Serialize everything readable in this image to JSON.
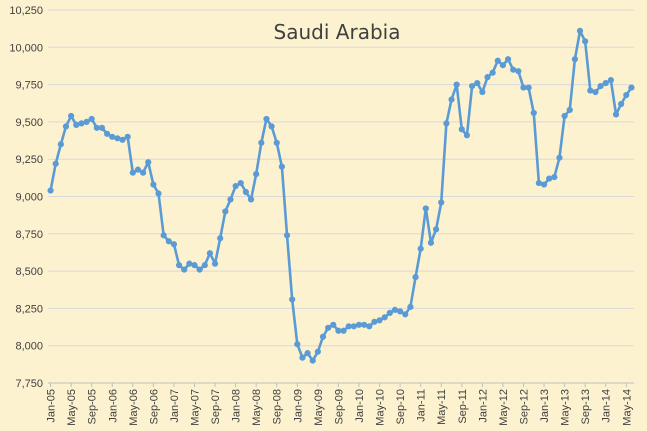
{
  "chart_data": {
    "type": "line",
    "title": "Saudi Arabia",
    "xlabel": "",
    "ylabel": "",
    "ylim": [
      7750,
      10250
    ],
    "yticks": [
      7750,
      8000,
      8250,
      8500,
      8750,
      9000,
      9250,
      9500,
      9750,
      10000,
      10250
    ],
    "ytick_labels": [
      "7,750",
      "8,000",
      "8,250",
      "8,500",
      "8,750",
      "9,000",
      "9,250",
      "9,500",
      "9,750",
      "10,000",
      "10,250"
    ],
    "xtick_labels": [
      "Jan-05",
      "May-05",
      "Sep-05",
      "Jan-06",
      "May-06",
      "Sep-06",
      "Jan-07",
      "May-07",
      "Sep-07",
      "Jan-08",
      "May-08",
      "Sep-08",
      "Jan-09",
      "May-09",
      "Sep-09",
      "Jan-10",
      "May-10",
      "Sep-10",
      "Jan-11",
      "May-11",
      "Sep-11",
      "Jan-12",
      "May-12",
      "Sep-12",
      "Jan-13",
      "May-13",
      "Sep-13",
      "Jan-14",
      "May-14"
    ],
    "grid": true,
    "line_color": "#5b9bd5",
    "grid_color": "#d9d9d9",
    "series": [
      {
        "name": "",
        "x_start": "Jan-05",
        "interval": "monthly",
        "values": [
          9040,
          9220,
          9350,
          9470,
          9540,
          9480,
          9490,
          9500,
          9520,
          9460,
          9460,
          9420,
          9400,
          9390,
          9380,
          9400,
          9160,
          9180,
          9160,
          9230,
          9080,
          9020,
          8740,
          8700,
          8680,
          8540,
          8510,
          8550,
          8540,
          8510,
          8540,
          8620,
          8550,
          8720,
          8900,
          8980,
          9070,
          9090,
          9030,
          8980,
          9150,
          9360,
          9520,
          9470,
          9360,
          9200,
          8740,
          8310,
          8010,
          7920,
          7950,
          7900,
          7960,
          8060,
          8120,
          8140,
          8100,
          8100,
          8130,
          8130,
          8140,
          8140,
          8130,
          8160,
          8170,
          8190,
          8220,
          8240,
          8230,
          8210,
          8260,
          8460,
          8650,
          8920,
          8690,
          8780,
          8960,
          9490,
          9650,
          9750,
          9450,
          9410,
          9740,
          9760,
          9700,
          9800,
          9830,
          9910,
          9880,
          9920,
          9850,
          9840,
          9730,
          9730,
          9560,
          9090,
          9080,
          9120,
          9130,
          9260,
          9540,
          9580,
          9920,
          10110,
          10040,
          9710,
          9700,
          9740,
          9760,
          9780,
          9550,
          9620,
          9680,
          9730
        ]
      }
    ]
  }
}
